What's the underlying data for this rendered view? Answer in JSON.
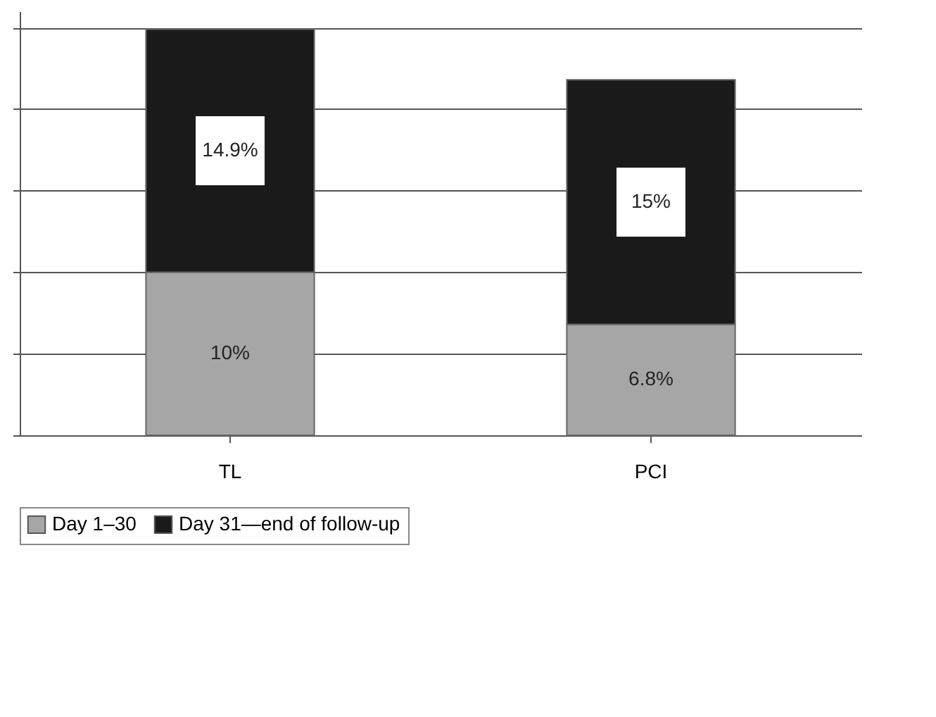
{
  "chart_data": {
    "type": "bar",
    "stacked": true,
    "categories": [
      "TL",
      "PCI"
    ],
    "series": [
      {
        "name": "Day 1–30",
        "color": "#a6a6a6",
        "values": [
          10,
          6.8
        ],
        "value_labels": [
          "10%",
          "6.8%"
        ]
      },
      {
        "name": "Day 31—end of follow-up",
        "color": "#1a1a1a",
        "values": [
          14.9,
          15
        ],
        "value_labels": [
          "14.9%",
          "15%"
        ]
      }
    ],
    "tick_labels": "x",
    "grid": "y",
    "legend": "bottom"
  }
}
